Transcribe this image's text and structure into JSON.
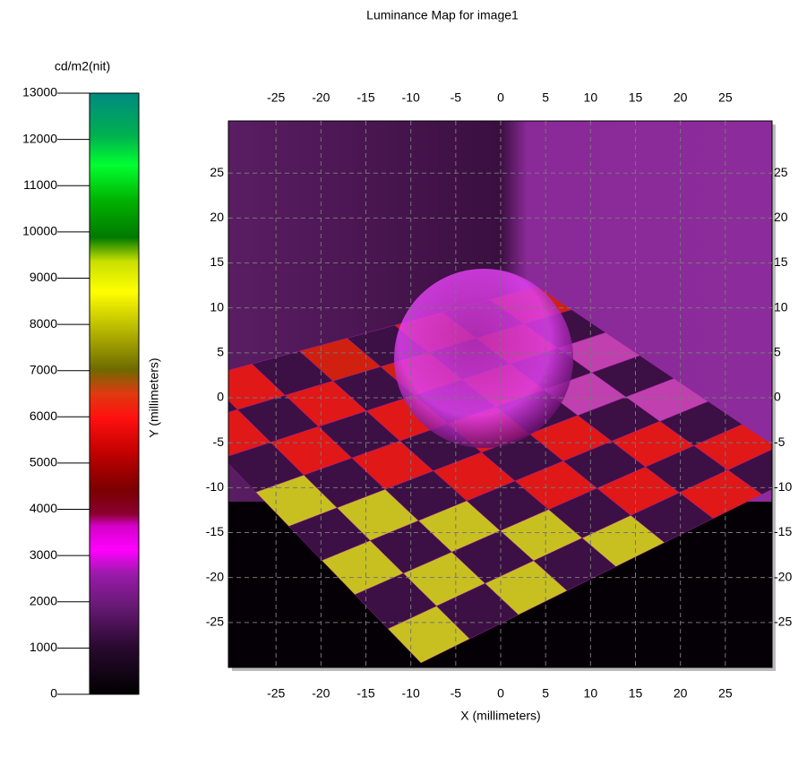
{
  "chart_data": {
    "type": "heatmap",
    "title": "Luminance Map for image1",
    "colorbar": {
      "label": "cd/m2(nit)",
      "lim": [
        0,
        13000
      ],
      "ticks": [
        0,
        1000,
        2000,
        3000,
        4000,
        5000,
        6000,
        7000,
        8000,
        9000,
        10000,
        11000,
        12000,
        13000
      ]
    },
    "xlabel": "X (millimeters)",
    "ylabel": "Y (millimeters)",
    "xlim": [
      -30.3,
      30.2
    ],
    "ylim": [
      -30,
      30.8
    ],
    "xticks": [
      -25,
      -20,
      -15,
      -10,
      -5,
      0,
      5,
      10,
      15,
      20,
      25
    ],
    "yticks": [
      -25,
      -20,
      -15,
      -10,
      -5,
      0,
      5,
      10,
      15,
      20,
      25
    ],
    "grid": true
  }
}
